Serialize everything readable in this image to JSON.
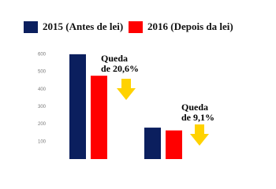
{
  "chart_data": {
    "type": "bar",
    "categories": [
      null,
      null
    ],
    "series": [
      {
        "name": "2015 (Antes de lei)",
        "color": "#0b1f5e",
        "values": [
          600,
          180
        ]
      },
      {
        "name": "2016 (Depois da lei)",
        "color": "#ff0000",
        "values": [
          477,
          164
        ]
      }
    ],
    "annotations": [
      [
        "Queda",
        "de 20,6%"
      ],
      [
        "Queda",
        "de 9,1%"
      ]
    ],
    "ylim": [
      0,
      640
    ],
    "yticks": [
      100,
      200,
      300,
      400,
      500,
      600
    ],
    "grid": false
  }
}
